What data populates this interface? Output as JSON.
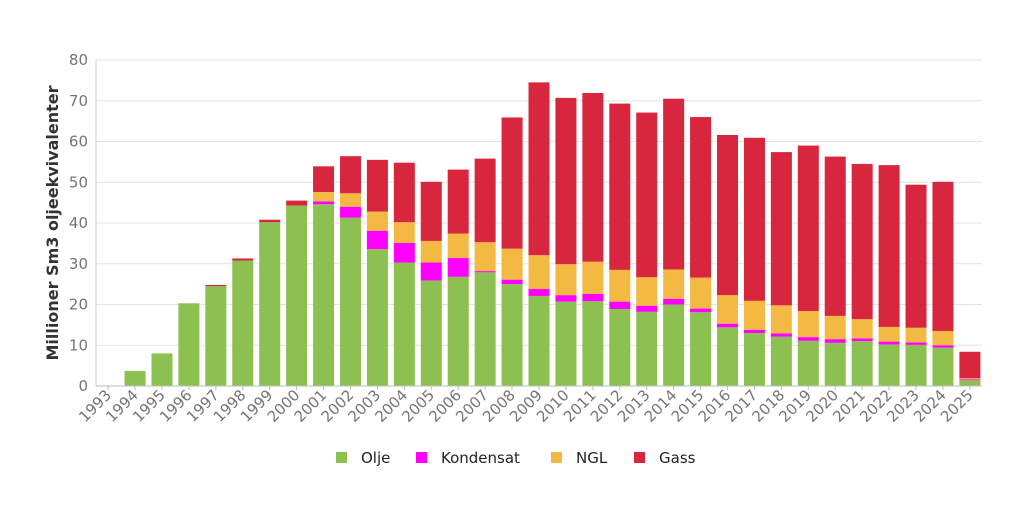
{
  "chart_data": {
    "type": "bar",
    "stacked": true,
    "title": "",
    "xlabel": "",
    "ylabel": "Millioner Sm3 oljeekvivalenter",
    "ylim": [
      0,
      80
    ],
    "yticks": [
      0,
      10,
      20,
      30,
      40,
      50,
      60,
      70,
      80
    ],
    "grid": true,
    "legend_position": "bottom",
    "categories": [
      "1993",
      "1994",
      "1995",
      "1996",
      "1997",
      "1998",
      "1999",
      "2000",
      "2001",
      "2002",
      "2003",
      "2004",
      "2005",
      "2006",
      "2007",
      "2008",
      "2009",
      "2010",
      "2011",
      "2012",
      "2013",
      "2014",
      "2015",
      "2016",
      "2017",
      "2018",
      "2019",
      "2020",
      "2021",
      "2022",
      "2023",
      "2024",
      "2025"
    ],
    "series": [
      {
        "name": "Olje",
        "color": "#8cc152",
        "values": [
          0,
          3.7,
          8.0,
          20.3,
          24.5,
          30.8,
          40.2,
          44.3,
          44.6,
          41.3,
          33.6,
          30.3,
          25.9,
          26.8,
          27.9,
          25.0,
          22.1,
          20.7,
          20.8,
          18.9,
          18.2,
          20.0,
          18.1,
          14.4,
          13.0,
          12.1,
          11.1,
          10.6,
          11.0,
          10.2,
          10.1,
          9.4,
          1.4
        ]
      },
      {
        "name": "Kondensat",
        "color": "#ff00ff",
        "values": [
          0,
          0,
          0,
          0,
          0,
          0,
          0,
          0,
          0.7,
          2.7,
          4.5,
          4.8,
          4.4,
          4.6,
          0.3,
          1.1,
          1.7,
          1.6,
          1.8,
          1.8,
          1.5,
          1.4,
          0.9,
          0.9,
          0.8,
          0.8,
          0.9,
          0.9,
          0.7,
          0.7,
          0.6,
          0.6,
          0.2
        ]
      },
      {
        "name": "NGL",
        "color": "#f4b942",
        "values": [
          0,
          0,
          0,
          0,
          0,
          0,
          0,
          0,
          2.3,
          3.3,
          4.7,
          5.1,
          5.3,
          6.0,
          7.1,
          7.6,
          8.3,
          7.6,
          7.9,
          7.8,
          7.0,
          7.2,
          7.6,
          7.0,
          7.1,
          6.9,
          6.4,
          5.7,
          4.7,
          3.6,
          3.6,
          3.5,
          0.3
        ]
      },
      {
        "name": "Gass",
        "color": "#d7263d",
        "values": [
          0,
          0,
          0,
          0,
          0.3,
          0.5,
          0.6,
          1.2,
          6.3,
          9.1,
          12.7,
          14.6,
          14.5,
          15.7,
          20.5,
          32.2,
          42.4,
          40.8,
          41.4,
          40.8,
          40.4,
          41.9,
          39.4,
          39.3,
          40.0,
          37.6,
          40.6,
          39.1,
          38.1,
          39.7,
          35.1,
          36.6,
          6.5
        ]
      }
    ]
  }
}
